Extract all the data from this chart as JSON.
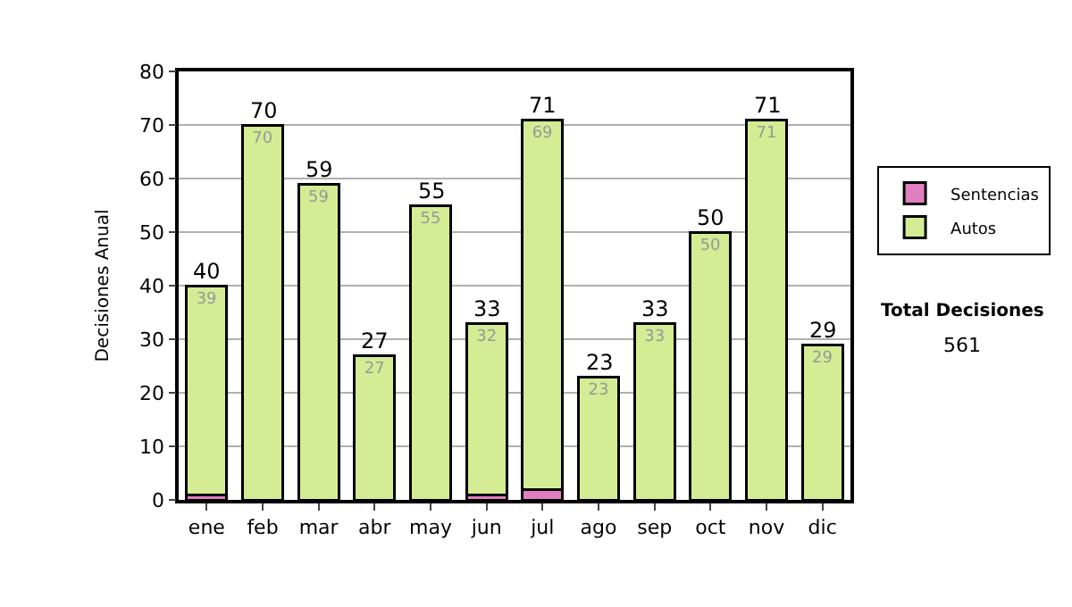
{
  "chart_data": {
    "type": "bar",
    "stacked": true,
    "ylabel": "Decisiones Anual",
    "categories": [
      "ene",
      "feb",
      "mar",
      "abr",
      "may",
      "jun",
      "jul",
      "ago",
      "sep",
      "oct",
      "nov",
      "dic"
    ],
    "series": [
      {
        "name": "Sentencias",
        "color": "#e07ec0",
        "values": [
          1,
          0,
          0,
          0,
          0,
          1,
          2,
          0,
          0,
          0,
          0,
          0
        ]
      },
      {
        "name": "Autos",
        "color": "#d4ec94",
        "values": [
          39,
          70,
          59,
          27,
          55,
          32,
          69,
          23,
          33,
          50,
          71,
          29
        ],
        "value_labels": [
          "39",
          "70",
          "59",
          "27",
          "55",
          "32",
          "69",
          "23",
          "33",
          "50",
          "71",
          "29"
        ]
      }
    ],
    "totals": [
      "40",
      "70",
      "59",
      "27",
      "55",
      "33",
      "71",
      "23",
      "33",
      "50",
      "71",
      "29"
    ],
    "ylim": [
      0,
      80
    ],
    "yticks": [
      0,
      10,
      20,
      30,
      40,
      50,
      60,
      70,
      80
    ],
    "grid": "y",
    "legend": "right",
    "annotations": [
      "Total Decisiones",
      "561"
    ]
  }
}
